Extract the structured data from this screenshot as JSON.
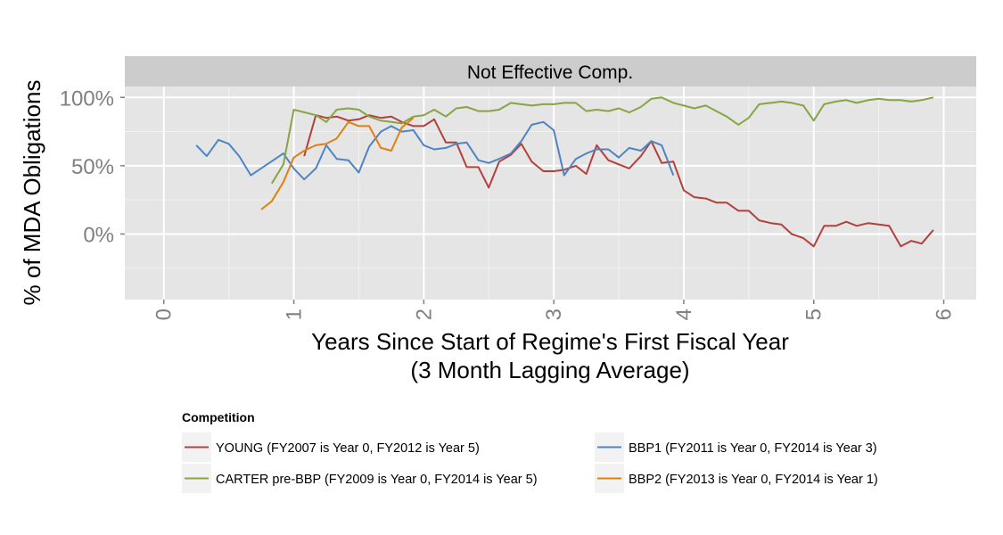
{
  "chart_data": {
    "type": "line",
    "panel_title": "Not Effective Comp.",
    "xlabel_line1": "Years Since Start of Regime's First Fiscal Year",
    "xlabel_line2": "(3 Month Lagging Average)",
    "ylabel": "% of MDA Obligations",
    "xlim": [
      -0.3,
      6.25
    ],
    "ylim": [
      -0.48,
      1.08
    ],
    "x_ticks": [
      0,
      1,
      2,
      3,
      4,
      5,
      6
    ],
    "x_tick_labels": [
      "0",
      "1",
      "2",
      "3",
      "4",
      "5",
      "6"
    ],
    "y_ticks": [
      0,
      0.5,
      1
    ],
    "y_tick_labels": [
      "0%",
      "50%",
      "100%"
    ],
    "grid": true,
    "legend": {
      "title": "Competition",
      "position": "bottom",
      "entries": [
        "YOUNG (FY2007 is Year 0, FY2012 is Year 5)",
        "BBP1 (FY2011 is Year 0, FY2014 is Year 3)",
        "CARTER pre-BBP (FY2009 is Year 0, FY2014 is Year 5)",
        "BBP2 (FY2013 is Year 0, FY2014 is Year 1)"
      ]
    },
    "series": [
      {
        "color": "#b2413d",
        "x": [
          1.08,
          1.17,
          1.25,
          1.33,
          1.42,
          1.5,
          1.58,
          1.67,
          1.75,
          1.83,
          1.92,
          2.0,
          2.08,
          2.17,
          2.25,
          2.33,
          2.42,
          2.5,
          2.58,
          2.67,
          2.75,
          2.83,
          2.92,
          3.0,
          3.08,
          3.17,
          3.25,
          3.33,
          3.42,
          3.5,
          3.58,
          3.67,
          3.75,
          3.83,
          3.92,
          4.0,
          4.08,
          4.17,
          4.25,
          4.33,
          4.42,
          4.5,
          4.58,
          4.67,
          4.75,
          4.83,
          4.92,
          5.0,
          5.08,
          5.17,
          5.25,
          5.33,
          5.42,
          5.5,
          5.58,
          5.67,
          5.75,
          5.83,
          5.92
        ],
        "y": [
          0.57,
          0.87,
          0.85,
          0.86,
          0.83,
          0.84,
          0.87,
          0.85,
          0.86,
          0.82,
          0.79,
          0.79,
          0.84,
          0.67,
          0.67,
          0.49,
          0.49,
          0.34,
          0.53,
          0.58,
          0.66,
          0.53,
          0.46,
          0.46,
          0.47,
          0.5,
          0.44,
          0.65,
          0.54,
          0.51,
          0.48,
          0.57,
          0.68,
          0.52,
          0.53,
          0.32,
          0.27,
          0.26,
          0.23,
          0.23,
          0.17,
          0.17,
          0.1,
          0.08,
          0.07,
          0.0,
          -0.03,
          -0.09,
          0.06,
          0.06,
          0.09,
          0.06,
          0.08,
          0.07,
          0.06,
          -0.09,
          -0.05,
          -0.07,
          0.03
        ]
      },
      {
        "color": "#4f84c4",
        "x": [
          0.25,
          0.33,
          0.42,
          0.5,
          0.58,
          0.67,
          0.92,
          1.0,
          1.08,
          1.17,
          1.25,
          1.33,
          1.42,
          1.5,
          1.58,
          1.67,
          1.75,
          1.83,
          1.92,
          2.0,
          2.08,
          2.17,
          2.25,
          2.33,
          2.42,
          2.5,
          2.58,
          2.67,
          2.75,
          2.83,
          2.92,
          3.0,
          3.08,
          3.17,
          3.25,
          3.33,
          3.42,
          3.5,
          3.58,
          3.67,
          3.75,
          3.83,
          3.92
        ],
        "y": [
          0.65,
          0.57,
          0.69,
          0.66,
          0.57,
          0.43,
          0.59,
          0.48,
          0.4,
          0.48,
          0.65,
          0.55,
          0.54,
          0.45,
          0.64,
          0.75,
          0.79,
          0.75,
          0.76,
          0.65,
          0.62,
          0.63,
          0.66,
          0.67,
          0.54,
          0.52,
          0.55,
          0.59,
          0.68,
          0.8,
          0.82,
          0.76,
          0.43,
          0.55,
          0.59,
          0.62,
          0.62,
          0.56,
          0.63,
          0.61,
          0.68,
          0.65,
          0.43
        ]
      },
      {
        "color": "#86a543",
        "x": [
          0.83,
          0.92,
          1.0,
          1.17,
          1.25,
          1.33,
          1.42,
          1.5,
          1.58,
          1.67,
          1.75,
          1.83,
          1.92,
          2.0,
          2.08,
          2.17,
          2.25,
          2.33,
          2.42,
          2.5,
          2.58,
          2.67,
          2.75,
          2.83,
          2.92,
          3.0,
          3.08,
          3.17,
          3.25,
          3.33,
          3.42,
          3.5,
          3.58,
          3.67,
          3.75,
          3.83,
          3.92,
          4.0,
          4.08,
          4.17,
          4.25,
          4.33,
          4.42,
          4.5,
          4.58,
          4.67,
          4.75,
          4.83,
          4.92,
          5.0,
          5.08,
          5.17,
          5.25,
          5.33,
          5.42,
          5.5,
          5.58,
          5.67,
          5.75,
          5.83,
          5.92
        ],
        "y": [
          0.37,
          0.51,
          0.91,
          0.87,
          0.82,
          0.91,
          0.92,
          0.91,
          0.86,
          0.83,
          0.82,
          0.81,
          0.86,
          0.87,
          0.91,
          0.86,
          0.92,
          0.93,
          0.9,
          0.9,
          0.91,
          0.96,
          0.95,
          0.94,
          0.95,
          0.95,
          0.96,
          0.96,
          0.9,
          0.91,
          0.9,
          0.92,
          0.89,
          0.93,
          0.99,
          1.0,
          0.96,
          0.94,
          0.92,
          0.94,
          0.9,
          0.86,
          0.8,
          0.85,
          0.95,
          0.96,
          0.97,
          0.96,
          0.94,
          0.83,
          0.95,
          0.97,
          0.98,
          0.96,
          0.98,
          0.99,
          0.98,
          0.98,
          0.97,
          0.98,
          1.0
        ]
      },
      {
        "color": "#e08010",
        "x": [
          0.75,
          0.83,
          0.92,
          1.0,
          1.08,
          1.17,
          1.25,
          1.33,
          1.42,
          1.5,
          1.58,
          1.67,
          1.75,
          1.83,
          1.92
        ],
        "y": [
          0.18,
          0.24,
          0.38,
          0.56,
          0.61,
          0.65,
          0.66,
          0.7,
          0.82,
          0.79,
          0.79,
          0.63,
          0.61,
          0.78,
          0.85
        ]
      }
    ]
  }
}
